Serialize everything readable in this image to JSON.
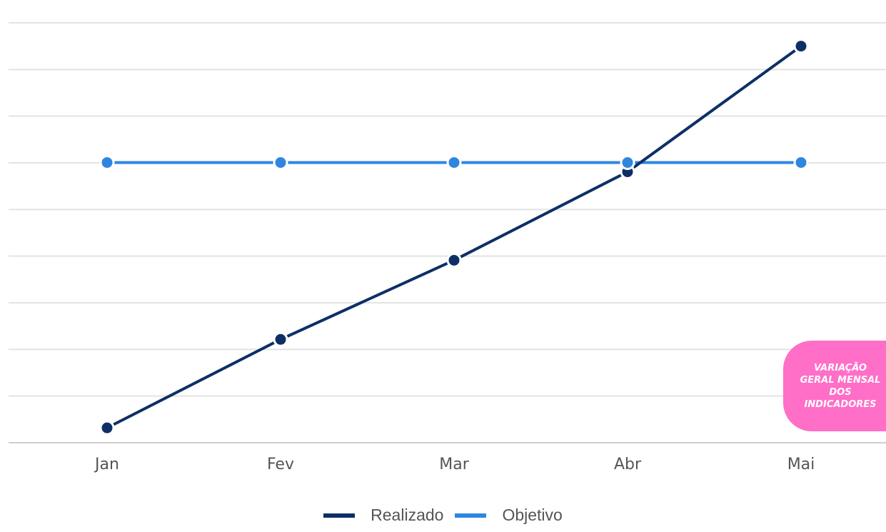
{
  "chart_data": {
    "type": "line",
    "categories": [
      "Jan",
      "Fev",
      "Mar",
      "Abr",
      "Mai"
    ],
    "series": [
      {
        "name": "Realizado",
        "color": "#0e2f66",
        "values": [
          0.3,
          2.2,
          3.9,
          5.8,
          8.5
        ]
      },
      {
        "name": "Objetivo",
        "color": "#2f86e0",
        "values": [
          6.0,
          6.0,
          6.0,
          6.0,
          6.0
        ]
      }
    ],
    "ylim": [
      -0.02,
      9
    ],
    "grid": true,
    "legend_position": "bottom"
  },
  "badge": {
    "text": "VARIAÇÃO GERAL MENSAL DOS INDICADORES",
    "color": "#ff6ec7"
  }
}
